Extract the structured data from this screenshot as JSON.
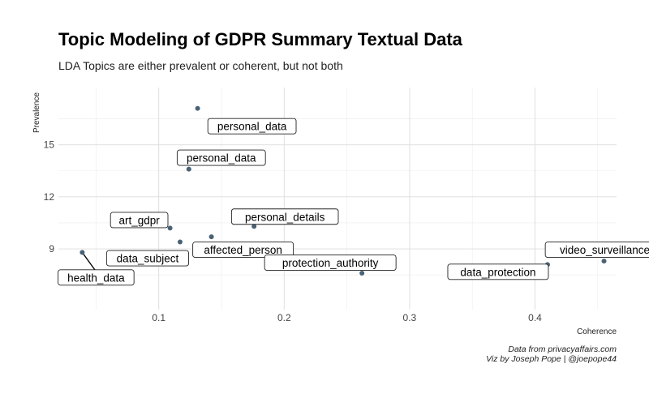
{
  "chart_data": {
    "type": "scatter",
    "title": "Topic Modeling of GDPR Summary Textual Data",
    "subtitle": "LDA Topics are either prevalent or coherent, but not both",
    "xlabel": "Coherence",
    "ylabel": "Prevalence",
    "xlim": [
      0.02,
      0.465
    ],
    "ylim": [
      5.5,
      18.3
    ],
    "x_ticks": [
      0.1,
      0.2,
      0.3,
      0.4
    ],
    "x_tick_labels": [
      "0.1",
      "0.2",
      "0.3",
      "0.4"
    ],
    "y_ticks": [
      9,
      12,
      15
    ],
    "y_tick_labels": [
      "9",
      "12",
      "15"
    ],
    "grid": true,
    "point_color": "#4a6274",
    "points": [
      {
        "label": "personal_data",
        "x": 0.131,
        "y": 17.1
      },
      {
        "label": "personal_data",
        "x": 0.124,
        "y": 13.6
      },
      {
        "label": "personal_details",
        "x": 0.176,
        "y": 10.3
      },
      {
        "label": "art_gdpr",
        "x": 0.109,
        "y": 10.2
      },
      {
        "label": "data_subject",
        "x": 0.117,
        "y": 9.4
      },
      {
        "label": "affected_person",
        "x": 0.142,
        "y": 9.7
      },
      {
        "label": "health_data",
        "x": 0.039,
        "y": 8.8
      },
      {
        "label": "protection_authority",
        "x": 0.262,
        "y": 7.6
      },
      {
        "label": "data_protection",
        "x": 0.41,
        "y": 8.1
      },
      {
        "label": "video_surveillance",
        "x": 0.455,
        "y": 8.3
      }
    ]
  },
  "caption": {
    "line1": "Data from privacyaffairs.com",
    "line2": "Viz by Joseph Pope | @joepope44"
  }
}
